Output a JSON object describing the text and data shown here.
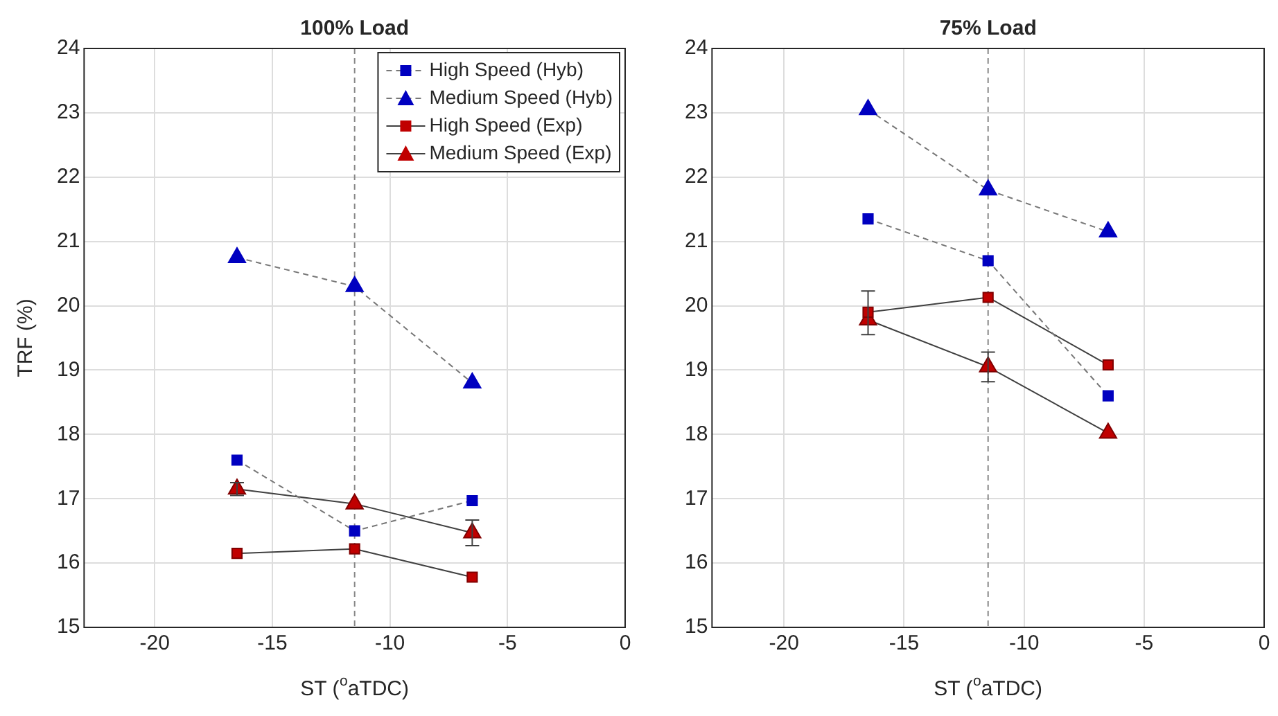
{
  "chart_data": [
    {
      "type": "line",
      "title": "100% Load",
      "xlabel": "ST ($^{o}$aTDC)",
      "ylabel": "TRF (%)",
      "x": [
        -16.5,
        -11.5,
        -6.5
      ],
      "xlim": [
        -23,
        0
      ],
      "xticks": [
        -20,
        -15,
        -10,
        -5,
        0
      ],
      "ylim": [
        15,
        24
      ],
      "yticks": [
        15,
        16,
        17,
        18,
        19,
        20,
        21,
        22,
        23,
        24
      ],
      "grid": true,
      "legend": "top right",
      "ref_lines": [
        {
          "axis": "x",
          "value": -11.5,
          "line_style": "dashed"
        }
      ],
      "series": [
        {
          "name": "High Speed (Hyb)",
          "color": "#0000c0",
          "marker": "square",
          "line_style": "dashed",
          "values": [
            17.6,
            16.5,
            16.97
          ]
        },
        {
          "name": "Medium Speed (Hyb)",
          "color": "#0000c0",
          "marker": "triangle",
          "line_style": "dashed",
          "values": [
            20.75,
            20.3,
            18.8
          ]
        },
        {
          "name": "High Speed (Exp)",
          "color": "#c00000",
          "marker": "square",
          "line_style": "solid",
          "values": [
            16.15,
            16.22,
            15.78
          ]
        },
        {
          "name": "Medium Speed (Exp)",
          "color": "#c00000",
          "marker": "triangle",
          "line_style": "solid",
          "values": [
            17.15,
            16.92,
            16.47
          ],
          "errors": [
            0.1,
            null,
            0.2
          ]
        }
      ]
    },
    {
      "type": "line",
      "title": "75% Load",
      "xlabel": "ST ($^{o}$aTDC)",
      "x": [
        -16.5,
        -11.5,
        -6.5
      ],
      "xlim": [
        -23,
        0
      ],
      "xticks": [
        -20,
        -15,
        -10,
        -5,
        0
      ],
      "ylim": [
        15,
        24
      ],
      "yticks": [
        15,
        16,
        17,
        18,
        19,
        20,
        21,
        22,
        23,
        24
      ],
      "grid": true,
      "ref_lines": [
        {
          "axis": "x",
          "value": -11.5,
          "line_style": "dashed"
        }
      ],
      "series": [
        {
          "color": "#0000c0",
          "marker": "square",
          "line_style": "dashed",
          "values": [
            21.35,
            20.7,
            18.6
          ]
        },
        {
          "color": "#0000c0",
          "marker": "triangle",
          "line_style": "dashed",
          "values": [
            23.05,
            21.8,
            21.15
          ]
        },
        {
          "color": "#c00000",
          "marker": "square",
          "line_style": "solid",
          "values": [
            19.9,
            20.13,
            19.08
          ],
          "errors": [
            [
              19.55,
              20.23
            ],
            null,
            null
          ]
        },
        {
          "color": "#c00000",
          "marker": "triangle",
          "line_style": "solid",
          "values": [
            19.78,
            19.05,
            18.02
          ],
          "errors": [
            null,
            0.23,
            null
          ]
        }
      ]
    }
  ]
}
